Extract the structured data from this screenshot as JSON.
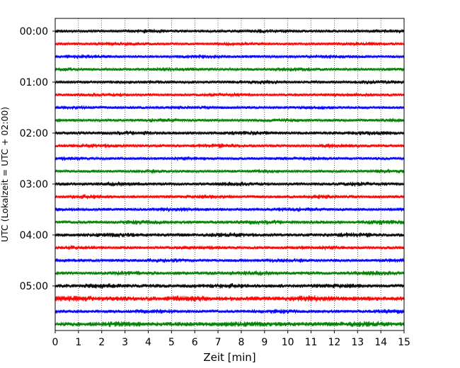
{
  "chart_data": {
    "type": "line",
    "title": "",
    "xlabel": "Zeit  [min]",
    "ylabel": "UTC (Lokalzeit = UTC + 02:00)",
    "xlim": [
      0,
      15
    ],
    "ylim": [
      0,
      24.5
    ],
    "y_inverted": true,
    "x_ticks": [
      0,
      1,
      2,
      3,
      4,
      5,
      6,
      7,
      8,
      9,
      10,
      11,
      12,
      13,
      14,
      15
    ],
    "y_ticks": [
      {
        "position": 1,
        "label": "00:00"
      },
      {
        "position": 5,
        "label": "01:00"
      },
      {
        "position": 9,
        "label": "02:00"
      },
      {
        "position": 13,
        "label": "03:00"
      },
      {
        "position": 17,
        "label": "04:00"
      },
      {
        "position": 21,
        "label": "05:00"
      }
    ],
    "grid": {
      "x": true,
      "y": false,
      "style": "dotted"
    },
    "series_colors": [
      "#000000",
      "#ff0000",
      "#0000ff",
      "#008000"
    ],
    "traces": [
      {
        "start": "00:00",
        "row": 1,
        "color": "#000000",
        "amplitude": 0.12
      },
      {
        "start": "00:15",
        "row": 2,
        "color": "#ff0000",
        "amplitude": 0.12
      },
      {
        "start": "00:30",
        "row": 3,
        "color": "#0000ff",
        "amplitude": 0.12
      },
      {
        "start": "00:45",
        "row": 4,
        "color": "#008000",
        "amplitude": 0.12
      },
      {
        "start": "01:00",
        "row": 5,
        "color": "#000000",
        "amplitude": 0.12
      },
      {
        "start": "01:15",
        "row": 6,
        "color": "#ff0000",
        "amplitude": 0.12
      },
      {
        "start": "01:30",
        "row": 7,
        "color": "#0000ff",
        "amplitude": 0.12
      },
      {
        "start": "01:45",
        "row": 8,
        "color": "#008000",
        "amplitude": 0.12
      },
      {
        "start": "02:00",
        "row": 9,
        "color": "#000000",
        "amplitude": 0.13
      },
      {
        "start": "02:15",
        "row": 10,
        "color": "#ff0000",
        "amplitude": 0.13
      },
      {
        "start": "02:30",
        "row": 11,
        "color": "#0000ff",
        "amplitude": 0.12
      },
      {
        "start": "02:45",
        "row": 12,
        "color": "#008000",
        "amplitude": 0.12
      },
      {
        "start": "03:00",
        "row": 13,
        "color": "#000000",
        "amplitude": 0.13
      },
      {
        "start": "03:15",
        "row": 14,
        "color": "#ff0000",
        "amplitude": 0.13
      },
      {
        "start": "03:30",
        "row": 15,
        "color": "#0000ff",
        "amplitude": 0.13
      },
      {
        "start": "03:45",
        "row": 16,
        "color": "#008000",
        "amplitude": 0.14
      },
      {
        "start": "04:00",
        "row": 17,
        "color": "#000000",
        "amplitude": 0.14
      },
      {
        "start": "04:15",
        "row": 18,
        "color": "#ff0000",
        "amplitude": 0.13
      },
      {
        "start": "04:30",
        "row": 19,
        "color": "#0000ff",
        "amplitude": 0.13
      },
      {
        "start": "04:45",
        "row": 20,
        "color": "#008000",
        "amplitude": 0.14
      },
      {
        "start": "05:00",
        "row": 21,
        "color": "#000000",
        "amplitude": 0.15
      },
      {
        "start": "05:15",
        "row": 22,
        "color": "#ff0000",
        "amplitude": 0.18
      },
      {
        "start": "05:30",
        "row": 23,
        "color": "#0000ff",
        "amplitude": 0.14
      },
      {
        "start": "05:45",
        "row": 24,
        "color": "#008000",
        "amplitude": 0.17
      }
    ]
  }
}
